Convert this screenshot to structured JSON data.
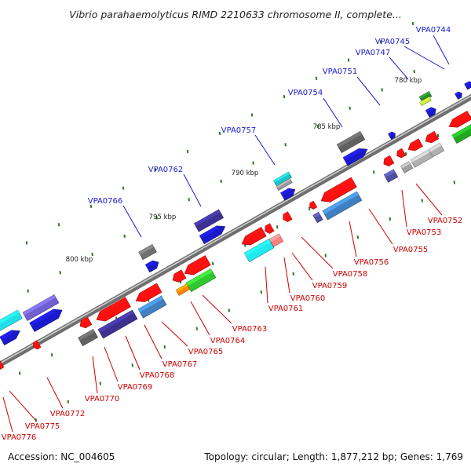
{
  "title": "Vibrio parahaemolyticus RIMD 2210633 chromosome II, complete...",
  "accession": "Accession: NC_004605",
  "summary": "Topology: circular; Length: 1,877,212 bp; Genes: 1,769",
  "colors": {
    "forward_label": "#1a1acc",
    "reverse_label": "#cc0000",
    "backbone": "#8a8a8a",
    "tick": "#2a7a2a"
  },
  "scale_labels": [
    "780 kbp",
    "785 kbp",
    "790 kbp",
    "795 kbp",
    "800 kbp"
  ],
  "forward_labels": [
    "VPA0744",
    "VPA0745",
    "VPA0747",
    "VPA0751",
    "VPA0754",
    "VPA0757",
    "VPA0762",
    "VPA0766"
  ],
  "reverse_labels": [
    "VPA0752",
    "VPA0753",
    "VPA0755",
    "VPA0756",
    "VPA0758",
    "VPA0759",
    "VPA0760",
    "VPA0761",
    "VPA0763",
    "VPA0764",
    "VPA0765",
    "VPA0767",
    "VPA0768",
    "VPA0769",
    "VPA0770",
    "VPA0772",
    "VPA0775",
    "VPA0776"
  ]
}
